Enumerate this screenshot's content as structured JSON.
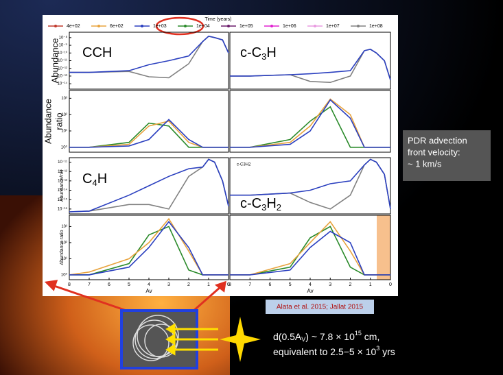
{
  "legend": {
    "title": "Time (years)",
    "items": [
      {
        "name": "4e+02",
        "color": "#c0392b"
      },
      {
        "name": "6e+02",
        "color": "#e8a33d"
      },
      {
        "name": "1e+03",
        "color": "#2a3fbf"
      },
      {
        "name": "1e+04",
        "color": "#2a8a2a"
      },
      {
        "name": "1e+05",
        "color": "#6a1a6a"
      },
      {
        "name": "1e+06",
        "color": "#e020d0"
      },
      {
        "name": "1e+07",
        "color": "#e89ae0"
      },
      {
        "name": "1e+08",
        "color": "#808080"
      }
    ]
  },
  "chart_data": [
    {
      "type": "line",
      "yscale": "log",
      "label": [
        "CCH"
      ],
      "ylabel": [
        "Abundance"
      ],
      "x": [
        8,
        7,
        5,
        4,
        3,
        2,
        1.3,
        1,
        0.7,
        0.3,
        0
      ],
      "xlim": [
        8,
        0
      ],
      "ylim": [
        2e-15,
        5e-08
      ],
      "yticks": [
        {
          "value": 1e-14,
          "label": "10⁻¹⁴"
        },
        {
          "value": 1e-13,
          "label": "10⁻¹³"
        },
        {
          "value": 1e-12,
          "label": "10⁻¹²"
        },
        {
          "value": 1e-11,
          "label": "10⁻¹¹"
        },
        {
          "value": 1e-10,
          "label": "10⁻¹⁰"
        },
        {
          "value": 1e-09,
          "label": "10⁻⁹"
        },
        {
          "value": 1e-08,
          "label": "10⁻⁸"
        }
      ],
      "series": [
        {
          "color": "#808080",
          "values": [
            3e-13,
            3e-13,
            4e-13,
            8e-14,
            6e-14,
            4e-12,
            3e-09,
            1.5e-08,
            1e-08,
            5e-09,
            1e-10
          ]
        },
        {
          "color": "#2a3fbf",
          "values": [
            3e-13,
            3e-13,
            5e-13,
            3e-12,
            1e-11,
            4e-11,
            3e-09,
            1.5e-08,
            1e-08,
            5e-09,
            1e-10
          ]
        }
      ]
    },
    {
      "type": "line",
      "yscale": "log",
      "label": [
        "c-C",
        "3",
        "H"
      ],
      "x": [
        8,
        7,
        5,
        4,
        3,
        2,
        1.3,
        1,
        0.7,
        0.3,
        0
      ],
      "xlim": [
        8,
        0
      ],
      "ylim": [
        2e-15,
        5e-08
      ],
      "series": [
        {
          "color": "#808080",
          "values": [
            1e-13,
            1e-13,
            1.5e-13,
            2e-14,
            1.5e-14,
            1e-13,
            2e-10,
            3e-10,
            1e-10,
            1e-11,
            3e-14
          ]
        },
        {
          "color": "#2a3fbf",
          "values": [
            1e-13,
            1e-13,
            1.5e-13,
            2e-13,
            3e-13,
            5e-13,
            2e-10,
            3e-10,
            1e-10,
            1e-11,
            3e-14
          ]
        }
      ]
    },
    {
      "type": "line",
      "yscale": "log",
      "ylabel": [
        "Abundance",
        "ratio"
      ],
      "x": [
        8,
        7,
        5,
        4,
        3,
        2,
        1.3,
        1,
        0.7,
        0.3,
        0
      ],
      "xlim": [
        8,
        0
      ],
      "ylim": [
        0.5,
        3000
      ],
      "yticks": [
        {
          "value": 1,
          "label": "10⁰"
        },
        {
          "value": 10,
          "label": "10¹"
        },
        {
          "value": 100,
          "label": "10²"
        },
        {
          "value": 1000,
          "label": "10³"
        }
      ],
      "series": [
        {
          "color": "#2a8a2a",
          "values": [
            1,
            1,
            2,
            30,
            20,
            1,
            1,
            1,
            1,
            1,
            1
          ]
        },
        {
          "color": "#e8a33d",
          "values": [
            1,
            1,
            1.5,
            20,
            40,
            2,
            1,
            1,
            1,
            1,
            1
          ]
        },
        {
          "color": "#2a3fbf",
          "values": [
            1,
            1,
            1.2,
            3,
            50,
            3,
            1,
            1,
            1,
            1,
            1
          ]
        }
      ]
    },
    {
      "type": "line",
      "yscale": "log",
      "x": [
        8,
        7,
        5,
        4,
        3,
        2,
        1.3,
        1,
        0.7,
        0.3,
        0
      ],
      "xlim": [
        8,
        0
      ],
      "ylim": [
        0.5,
        3000
      ],
      "series": [
        {
          "color": "#2a8a2a",
          "values": [
            1,
            1,
            3,
            40,
            300,
            1,
            1,
            1,
            1,
            1,
            1
          ]
        },
        {
          "color": "#e8a33d",
          "values": [
            1,
            1,
            2,
            20,
            900,
            100,
            1,
            1,
            1,
            1,
            1
          ]
        },
        {
          "color": "#2a3fbf",
          "values": [
            1,
            1,
            1.5,
            10,
            800,
            60,
            1,
            1,
            1,
            1,
            1
          ]
        }
      ]
    },
    {
      "type": "line",
      "yscale": "log",
      "label": [
        "C",
        "4",
        "H"
      ],
      "ylabel": [
        "Abundance/nH"
      ],
      "x": [
        8,
        7,
        5,
        4,
        3,
        2,
        1.3,
        1,
        0.7,
        0.3,
        0
      ],
      "xlim": [
        8,
        0
      ],
      "ylim": [
        3e-17,
        3e-11
      ],
      "yticks": [
        {
          "value": 1e-16,
          "label": "10⁻¹⁶"
        },
        {
          "value": 1e-15,
          "label": "10⁻¹⁵"
        },
        {
          "value": 1e-14,
          "label": "10⁻¹⁴"
        },
        {
          "value": 1e-13,
          "label": "10⁻¹³"
        },
        {
          "value": 1e-12,
          "label": "10⁻¹²"
        },
        {
          "value": 1e-11,
          "label": "10⁻¹¹"
        }
      ],
      "series": [
        {
          "color": "#808080",
          "values": [
            5e-17,
            6e-17,
            3e-16,
            3e-16,
            1e-16,
            3e-13,
            3e-12,
            2e-11,
            1e-11,
            1e-13,
            2e-16
          ]
        },
        {
          "color": "#2a3fbf",
          "values": [
            5e-17,
            6e-17,
            3e-15,
            3e-14,
            3e-13,
            2e-12,
            3e-12,
            2e-11,
            1e-11,
            1e-13,
            2e-16
          ]
        }
      ]
    },
    {
      "type": "line",
      "yscale": "log",
      "label": [
        "c-C",
        "3",
        "H",
        "2"
      ],
      "annotation": "c-C3H2",
      "x": [
        8,
        7,
        5,
        4,
        3,
        2,
        1.3,
        1,
        0.7,
        0.3,
        0
      ],
      "xlim": [
        8,
        0
      ],
      "ylim": [
        3e-17,
        3e-11
      ],
      "series": [
        {
          "color": "#808080",
          "values": [
            3e-15,
            3e-15,
            5e-15,
            5e-16,
            1e-16,
            3e-15,
            5e-12,
            2e-11,
            1e-11,
            5e-13,
            1e-16
          ]
        },
        {
          "color": "#2a3fbf",
          "values": [
            3e-15,
            3e-15,
            5e-15,
            1e-14,
            5e-14,
            1e-13,
            5e-12,
            2e-11,
            1e-11,
            5e-13,
            1e-16
          ]
        }
      ]
    },
    {
      "type": "line",
      "yscale": "log",
      "ylabel": [
        "Abundance ratio"
      ],
      "xlabel": "Av",
      "x": [
        8,
        7,
        5,
        4,
        3,
        2,
        1.3,
        1,
        0.7,
        0.3,
        0
      ],
      "xlim": [
        8,
        0
      ],
      "xticks": [
        8,
        7,
        6,
        5,
        4,
        3,
        2,
        1,
        0
      ],
      "ylim": [
        0.5,
        5000
      ],
      "yticks": [
        {
          "value": 1,
          "label": "10⁰"
        },
        {
          "value": 10,
          "label": "10¹"
        },
        {
          "value": 100,
          "label": "10²"
        },
        {
          "value": 1000,
          "label": "10³"
        }
      ],
      "series": [
        {
          "color": "#2a8a2a",
          "values": [
            1,
            1,
            5,
            300,
            1000,
            2,
            1,
            1,
            1,
            1,
            1
          ]
        },
        {
          "color": "#e8a33d",
          "values": [
            1,
            1.5,
            10,
            100,
            3000,
            30,
            1,
            1,
            1,
            1,
            1
          ]
        },
        {
          "color": "#2a3fbf",
          "values": [
            1,
            1,
            3,
            50,
            2000,
            50,
            1,
            1,
            1,
            1,
            1
          ]
        }
      ]
    },
    {
      "type": "line",
      "yscale": "log",
      "xlabel": "Av",
      "x": [
        8,
        7,
        5,
        4,
        3,
        2,
        1.3,
        1,
        0.7,
        0.3,
        0
      ],
      "xlim": [
        8,
        0
      ],
      "xticks": [
        8,
        7,
        6,
        5,
        4,
        3,
        2,
        1,
        0
      ],
      "ylim": [
        0.5,
        5000
      ],
      "series": [
        {
          "color": "#2a8a2a",
          "values": [
            1,
            1,
            3,
            200,
            1000,
            3,
            1,
            1,
            1,
            1,
            1
          ]
        },
        {
          "color": "#e8a33d",
          "values": [
            1,
            1,
            5,
            100,
            2000,
            30,
            1,
            1,
            1,
            1,
            1
          ]
        },
        {
          "color": "#2a3fbf",
          "values": [
            1,
            1,
            2,
            50,
            500,
            100,
            1,
            1,
            1,
            1,
            1
          ]
        }
      ]
    }
  ],
  "side_box": [
    "PDR advection",
    "front velocity:",
    "~ 1 km/s"
  ],
  "citation": "Alata et al. 2015; Jallat 2015",
  "distance": [
    "d(0.5A",
    "V",
    ") ~ 7.8 × 10",
    "15",
    " cm,"
  ],
  "time": [
    "equivalent to 2.5−5 × 10",
    "3",
    " yrs"
  ]
}
